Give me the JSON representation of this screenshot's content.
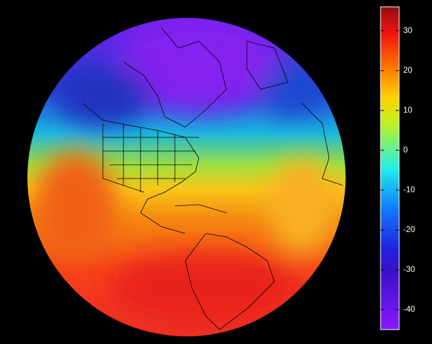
{
  "colorbar": {
    "lim": [
      -45,
      36
    ],
    "ticks": [
      30,
      20,
      10,
      0,
      -10,
      -20,
      -30,
      -40
    ]
  }
}
